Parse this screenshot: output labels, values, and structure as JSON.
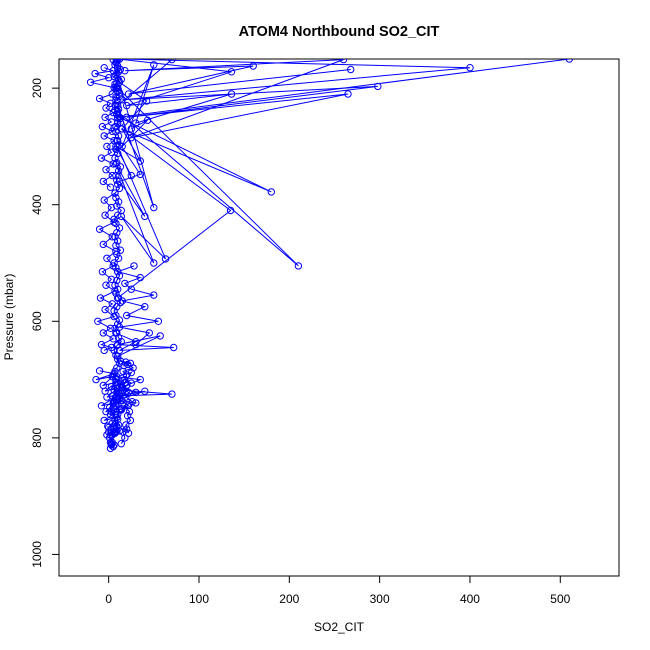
{
  "chart_data": {
    "type": "line",
    "title": "ATOM4 Northbound SO2_CIT",
    "xlabel": "SO2_CIT",
    "ylabel": "Pressure (mbar)",
    "xlim": [
      -55,
      565
    ],
    "ylim": [
      1037,
      150
    ],
    "y_reversed": true,
    "grid": false,
    "legend": "none",
    "x_ticks": [
      0,
      100,
      200,
      300,
      400,
      500
    ],
    "y_ticks": [
      200,
      400,
      600,
      800,
      1000
    ],
    "color": "#0000ff",
    "marker": "open-circle",
    "series": [
      {
        "x": [
          3,
          2,
          4,
          6,
          5,
          8,
          9,
          7,
          10,
          12,
          8,
          6,
          9,
          11,
          10,
          13,
          8,
          5,
          7,
          9,
          12,
          10,
          8,
          6,
          9,
          14,
          11,
          9,
          7,
          10,
          12,
          8,
          6,
          9,
          13,
          11,
          8,
          10,
          7,
          9,
          12,
          10,
          8,
          6,
          11,
          9,
          13,
          8,
          10,
          7,
          9,
          12,
          8,
          6,
          10,
          14,
          9,
          11,
          8,
          7,
          12,
          10,
          9,
          8,
          11,
          13,
          9,
          7,
          10,
          8,
          12,
          9,
          11,
          8,
          6,
          10,
          13,
          9,
          7,
          8
        ],
        "y": [
          812,
          808,
          795,
          790,
          783,
          790,
          780,
          770,
          760,
          752,
          745,
          738,
          730,
          722,
          715,
          708,
          700,
          692,
          686,
          680,
          672,
          665,
          658,
          650,
          642,
          635,
          628,
          620,
          612,
          605,
          598,
          590,
          582,
          575,
          568,
          560,
          552,
          545,
          538,
          530,
          522,
          515,
          508,
          500,
          492,
          485,
          478,
          470,
          462,
          455,
          448,
          440,
          432,
          425,
          418,
          410,
          402,
          395,
          388,
          380,
          372,
          365,
          358,
          350,
          342,
          335,
          328,
          320,
          312,
          305,
          298,
          290,
          282,
          275,
          268,
          260,
          252,
          245,
          238,
          230
        ]
      },
      {
        "x": [
          10,
          8,
          12,
          9,
          7,
          11,
          6,
          9,
          13,
          10,
          8,
          5,
          12,
          9,
          7,
          10,
          11,
          8,
          14,
          9,
          6,
          10,
          12,
          8,
          7,
          11,
          9,
          10,
          13,
          8
        ],
        "y": [
          222,
          215,
          208,
          200,
          193,
          186,
          180,
          174,
          168,
          162,
          156,
          151,
          150,
          155,
          160,
          166,
          172,
          178,
          185,
          192,
          199,
          206,
          214,
          221,
          229,
          236,
          244,
          251,
          259,
          266
        ]
      },
      {
        "x": [
          -1,
          0,
          2,
          1,
          4,
          3,
          6,
          5,
          2,
          8,
          7,
          4,
          10,
          9,
          12,
          3,
          1,
          5,
          15,
          2,
          4,
          14,
          6,
          3,
          18,
          8,
          5,
          12,
          20,
          16
        ],
        "y": [
          780,
          790,
          795,
          800,
          808,
          810,
          812,
          815,
          818,
          785,
          792,
          775,
          768,
          782,
          788,
          755,
          748,
          742,
          736,
          760,
          728,
          724,
          718,
          712,
          706,
          698,
          740,
          732,
          720,
          702
        ]
      },
      {
        "x": [
          14,
          18,
          16,
          20,
          22,
          19,
          24,
          21,
          23,
          17,
          26,
          19,
          22,
          15,
          25,
          18,
          20,
          16,
          27,
          21,
          13,
          24,
          17,
          19
        ],
        "y": [
          810,
          800,
          790,
          785,
          792,
          778,
          770,
          762,
          755,
          745,
          738,
          730,
          722,
          714,
          706,
          700,
          692,
          686,
          680,
          674,
          668,
          672,
          676,
          670
        ]
      },
      {
        "x": [
          8,
          30,
          10,
          40,
          12,
          70,
          15,
          20,
          35,
          9,
          25,
          18,
          12,
          30,
          8,
          22,
          14
        ],
        "y": [
          760,
          740,
          735,
          720,
          728,
          725,
          718,
          710,
          700,
          695,
          688,
          705,
          712,
          722,
          730,
          744,
          752
        ]
      },
      {
        "x": [
          -10,
          6,
          -14,
          4,
          -6,
          8,
          -4,
          10,
          -2,
          12,
          -8,
          6,
          -3,
          14,
          -5,
          9,
          0,
          11,
          -2,
          7
        ],
        "y": [
          685,
          690,
          700,
          695,
          710,
          705,
          720,
          715,
          730,
          725,
          745,
          740,
          755,
          750,
          770,
          765,
          782,
          778,
          795,
          790
        ]
      },
      {
        "x": [
          -5,
          3,
          -8,
          5,
          -6,
          2,
          -12,
          6,
          -4,
          4,
          -9,
          7,
          -3,
          3,
          -7,
          5,
          -2,
          8,
          -6,
          4,
          -10,
          6,
          -4,
          3,
          -5,
          7
        ],
        "y": [
          650,
          645,
          640,
          630,
          620,
          612,
          600,
          592,
          580,
          570,
          560,
          548,
          538,
          528,
          515,
          505,
          492,
          480,
          468,
          455,
          442,
          430,
          418,
          405,
          392,
          380
        ]
      },
      {
        "x": [
          2,
          -6,
          4,
          -3,
          5,
          -8,
          3,
          -2,
          6,
          -5,
          4,
          -7,
          3,
          -4,
          5,
          -3,
          2,
          -10,
          4,
          8,
          -20,
          0,
          -15,
          5,
          -5
        ],
        "y": [
          370,
          360,
          350,
          340,
          330,
          320,
          310,
          300,
          290,
          282,
          274,
          266,
          258,
          250,
          242,
          234,
          226,
          218,
          210,
          200,
          190,
          182,
          175,
          170,
          165
        ]
      },
      {
        "x": [
          30,
          45,
          12,
          55,
          20,
          40,
          15,
          50,
          25,
          18,
          35,
          10,
          28
        ],
        "y": [
          640,
          620,
          610,
          600,
          590,
          575,
          565,
          555,
          545,
          535,
          525,
          515,
          505
        ]
      },
      {
        "x": [
          10,
          57,
          10,
          72,
          12,
          30,
          8
        ],
        "y": [
          660,
          625,
          640,
          645,
          650,
          635,
          620
        ]
      },
      {
        "x": [
          10,
          210,
          10
        ],
        "y": [
          200,
          505,
          240
        ]
      },
      {
        "x": [
          12,
          180,
          14,
          135,
          10
        ],
        "y": [
          250,
          378,
          270,
          410,
          560
        ]
      },
      {
        "x": [
          10,
          63,
          14,
          50,
          8,
          40,
          12,
          35,
          10
        ],
        "y": [
          300,
          493,
          420,
          500,
          330,
          420,
          360,
          348,
          290
        ]
      },
      {
        "x": [
          10,
          136,
          20,
          136,
          30,
          50,
          15,
          43,
          25
        ],
        "y": [
          150,
          172,
          230,
          210,
          260,
          160,
          300,
          255,
          270
        ]
      },
      {
        "x": [
          12,
          400,
          15,
          298,
          20,
          265,
          25,
          260,
          18,
          160,
          22,
          268
        ],
        "y": [
          150,
          165,
          220,
          197,
          250,
          210,
          285,
          151,
          170,
          162,
          210,
          168
        ]
      },
      {
        "x": [
          70,
          10,
          50,
          12,
          42,
          15,
          35,
          8,
          25
        ],
        "y": [
          151,
          230,
          405,
          190,
          222,
          270,
          325,
          300,
          350
        ]
      },
      {
        "x": [
          10,
          510
        ],
        "y": [
          250,
          150
        ]
      }
    ]
  }
}
